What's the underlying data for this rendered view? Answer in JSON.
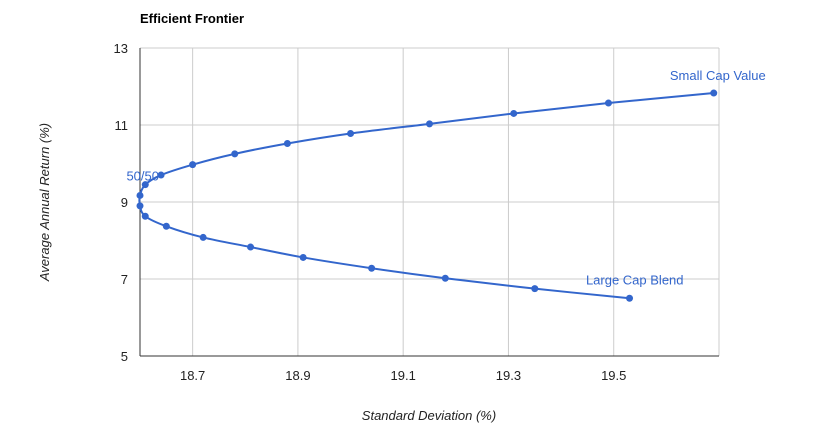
{
  "chart_data": {
    "type": "line",
    "title": "Efficient Frontier",
    "xlabel": "Standard Deviation (%)",
    "ylabel": "Average Annual Return (%)",
    "xlim": [
      18.6,
      19.7
    ],
    "ylim": [
      5,
      13
    ],
    "xticks": [
      18.7,
      18.9,
      19.1,
      19.3,
      19.5
    ],
    "yticks": [
      5,
      7,
      9,
      11,
      13
    ],
    "grid": true,
    "legend": "none",
    "colors": {
      "line": "#3366cc",
      "grid": "#cccccc",
      "axis": "#333333"
    },
    "series": [
      {
        "x": [
          19.53,
          19.35,
          19.18,
          19.04,
          18.91,
          18.81,
          18.72,
          18.65,
          18.61,
          18.6,
          18.6,
          18.61,
          18.64,
          18.7,
          18.78,
          18.88,
          19.0,
          19.15,
          19.31,
          19.49,
          19.69
        ],
        "y": [
          6.5,
          6.75,
          7.02,
          7.28,
          7.56,
          7.83,
          8.08,
          8.37,
          8.63,
          8.9,
          9.17,
          9.45,
          9.7,
          9.97,
          10.25,
          10.52,
          10.78,
          11.03,
          11.3,
          11.57,
          11.83
        ]
      }
    ],
    "annotations": [
      {
        "text": "Small Cap Value",
        "x": 19.69,
        "y": 11.83,
        "position": "above-left"
      },
      {
        "text": "50/50",
        "x": 18.6,
        "y": 9.17,
        "position": "above-left"
      },
      {
        "text": "Large Cap Blend",
        "x": 19.53,
        "y": 6.5,
        "position": "above-left"
      }
    ]
  }
}
